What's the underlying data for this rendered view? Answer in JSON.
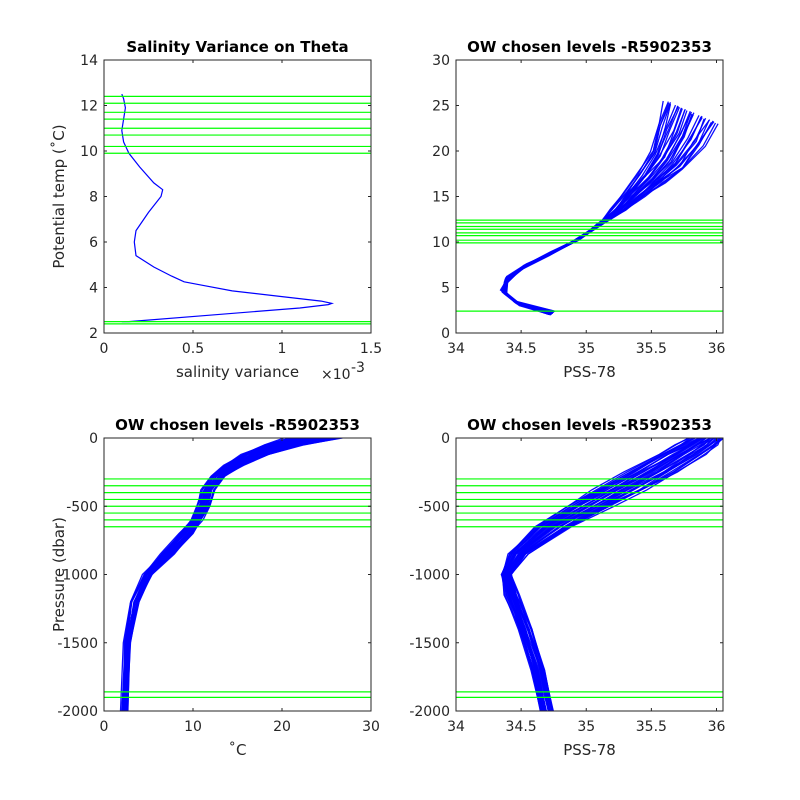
{
  "chart_data": [
    {
      "type": "line",
      "title": "Salinity Variance on Theta",
      "xlabel": "salinity variance",
      "xexponent": "×10",
      "xexponent_power": "-3",
      "ylabel": "Potential temp (˚C)",
      "xlim": [
        0,
        1.5
      ],
      "ylim": [
        2,
        14
      ],
      "xticks": [
        0,
        0.5,
        1,
        1.5
      ],
      "yticks": [
        2,
        4,
        6,
        8,
        10,
        12,
        14
      ],
      "xtick_labels": [
        "0",
        "0.5",
        "1",
        "1.5"
      ],
      "ytick_labels": [
        "2",
        "4",
        "6",
        "8",
        "10",
        "12",
        "14"
      ],
      "series": [
        {
          "color": "#0000ff",
          "x": [
            0.1,
            0.14,
            0.62,
            1.1,
            1.26,
            1.28,
            1.22,
            1.0,
            0.72,
            0.55,
            0.45,
            0.38,
            0.28,
            0.18,
            0.17,
            0.18,
            0.25,
            0.32,
            0.33,
            0.28,
            0.2,
            0.14,
            0.11,
            0.1,
            0.11,
            0.12,
            0.11,
            0.1
          ],
          "y": [
            2.5,
            2.5,
            2.8,
            3.1,
            3.25,
            3.3,
            3.4,
            3.6,
            3.85,
            4.1,
            4.25,
            4.5,
            4.9,
            5.4,
            6.0,
            6.5,
            7.3,
            8.0,
            8.3,
            8.6,
            9.3,
            9.9,
            10.4,
            10.9,
            11.4,
            11.9,
            12.3,
            12.5
          ]
        }
      ],
      "hlines": {
        "color": "#00ff00",
        "y": [
          2.4,
          2.5,
          9.9,
          10.2,
          10.7,
          11.0,
          11.4,
          11.7,
          12.1,
          12.4
        ]
      }
    },
    {
      "type": "line",
      "title": "OW chosen levels -R5902353",
      "xlabel": "PSS-78",
      "ylabel": "",
      "xlim": [
        34,
        36.05
      ],
      "ylim": [
        0,
        30
      ],
      "xticks": [
        34,
        34.5,
        35,
        35.5,
        36
      ],
      "yticks": [
        0,
        5,
        10,
        15,
        20,
        25,
        30
      ],
      "xtick_labels": [
        "34",
        "34.5",
        "35",
        "35.5",
        "36"
      ],
      "ytick_labels": [
        "0",
        "5",
        "10",
        "15",
        "20",
        "25",
        "30"
      ],
      "series": [
        {
          "color": "#0000ff",
          "name": "",
          "x": [
            34.72,
            34.5,
            34.38,
            34.38,
            34.5,
            34.7,
            34.9,
            35.1,
            35.3,
            35.45,
            35.6,
            35.75,
            35.9,
            36.0
          ],
          "y": [
            2.0,
            3.0,
            4.3,
            5.5,
            7.0,
            8.5,
            10.0,
            11.8,
            13.5,
            15.0,
            16.5,
            18.0,
            20.5,
            23.0
          ]
        },
        {
          "color": "#0000ff",
          "name": "",
          "x": [
            34.75,
            34.45,
            34.35,
            34.4,
            34.55,
            34.75,
            34.95,
            35.1,
            35.2,
            35.3,
            35.4,
            35.5,
            35.55,
            35.6
          ],
          "y": [
            2.4,
            3.5,
            4.8,
            6.2,
            7.6,
            9.0,
            10.4,
            12.0,
            13.6,
            15.5,
            17.5,
            20.0,
            23.0,
            25.5
          ]
        }
      ],
      "hlines": {
        "color": "#00ff00",
        "y": [
          2.4,
          9.9,
          10.2,
          10.7,
          11.0,
          11.4,
          11.7,
          12.1,
          12.4
        ]
      }
    },
    {
      "type": "line",
      "title": "OW chosen levels -R5902353",
      "xlabel": "˚C",
      "ylabel": "Pressure (dbar)",
      "xlim": [
        0,
        30
      ],
      "ylim": [
        -2000,
        0
      ],
      "xticks": [
        0,
        10,
        20,
        30
      ],
      "yticks": [
        -2000,
        -1500,
        -1000,
        -500,
        0
      ],
      "xtick_labels": [
        "0",
        "10",
        "20",
        "30"
      ],
      "ytick_labels": [
        "-2000",
        "-1500",
        "-1000",
        "-500",
        "0"
      ],
      "series": [
        {
          "color": "#0000ff",
          "name": "",
          "x": [
            2.0,
            2.3,
            3.0,
            4.5,
            6.5,
            8.5,
            9.8,
            10.5,
            11.0,
            12.0,
            13.5,
            15.5,
            18.0,
            20.5
          ],
          "y": [
            -2000,
            -1500,
            -1200,
            -1000,
            -850,
            -700,
            -600,
            -500,
            -380,
            -280,
            -200,
            -120,
            -50,
            0
          ]
        },
        {
          "color": "#0000ff",
          "name": "",
          "x": [
            2.6,
            3.0,
            3.8,
            5.5,
            7.8,
            10.0,
            11.0,
            11.8,
            12.3,
            13.5,
            15.5,
            18.5,
            22.5,
            26.5
          ],
          "y": [
            -2000,
            -1500,
            -1200,
            -1000,
            -850,
            -700,
            -600,
            -500,
            -380,
            -280,
            -200,
            -120,
            -50,
            0
          ]
        }
      ],
      "hlines": {
        "color": "#00ff00",
        "y": [
          -1900,
          -1860,
          -650,
          -600,
          -550,
          -500,
          -450,
          -400,
          -350,
          -300
        ]
      }
    },
    {
      "type": "line",
      "title": "OW chosen levels -R5902353",
      "xlabel": "PSS-78",
      "ylabel": "",
      "xlim": [
        34,
        36.05
      ],
      "ylim": [
        -2000,
        0
      ],
      "xticks": [
        34,
        34.5,
        35,
        35.5,
        36
      ],
      "yticks": [
        -2000,
        -1500,
        -1000,
        -500,
        0
      ],
      "xtick_labels": [
        "34",
        "34.5",
        "35",
        "35.5",
        "36"
      ],
      "ytick_labels": [
        "-2000",
        "-1500",
        "-1000",
        "-500",
        "0"
      ],
      "series": [
        {
          "color": "#0000ff",
          "name": "",
          "x": [
            34.65,
            34.58,
            34.48,
            34.38,
            34.35,
            34.4,
            34.6,
            34.85,
            35.05,
            35.3,
            35.55,
            35.7,
            35.8
          ],
          "y": [
            -2000,
            -1700,
            -1400,
            -1150,
            -1000,
            -850,
            -650,
            -500,
            -380,
            -250,
            -120,
            -50,
            0
          ]
        },
        {
          "color": "#0000ff",
          "name": "",
          "x": [
            34.75,
            34.68,
            34.58,
            34.48,
            34.42,
            34.55,
            34.9,
            35.2,
            35.45,
            35.7,
            35.9,
            36.0,
            36.05
          ],
          "y": [
            -2000,
            -1700,
            -1400,
            -1150,
            -1000,
            -850,
            -650,
            -500,
            -380,
            -250,
            -120,
            -50,
            0
          ]
        }
      ],
      "hlines": {
        "color": "#00ff00",
        "y": [
          -1900,
          -1860,
          -650,
          -600,
          -550,
          -500,
          -450,
          -400,
          -350,
          -300
        ]
      }
    }
  ]
}
